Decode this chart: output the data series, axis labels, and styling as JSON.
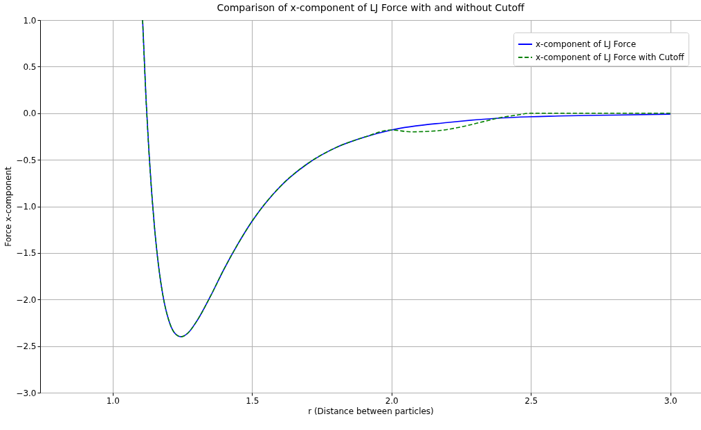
{
  "chart_data": {
    "type": "line",
    "title": "Comparison of x-component of LJ Force with and without Cutoff",
    "xlabel": "r (Distance between particles)",
    "ylabel": "Force x-component",
    "xlim": [
      0.74,
      3.11
    ],
    "ylim": [
      -3,
      1
    ],
    "xticks": [
      {
        "value": 1,
        "label": "1.0"
      },
      1.5,
      {
        "value": 2,
        "label": "2.0"
      },
      2.5,
      {
        "value": 3,
        "label": "3.0"
      }
    ],
    "yticks": [
      {
        "value": -3,
        "label": "−3.0"
      },
      {
        "value": -2.5,
        "label": "−2.5"
      },
      {
        "value": -2,
        "label": "−2.0"
      },
      {
        "value": -1.5,
        "label": "−1.5"
      },
      {
        "value": -1,
        "label": "−1.0"
      },
      {
        "value": -0.5,
        "label": "−0.5"
      },
      {
        "value": 0,
        "label": "0.0"
      },
      0.5,
      {
        "value": 1,
        "label": "1.0"
      }
    ],
    "grid": true,
    "legend": "top right",
    "line_style": "solid",
    "series": [
      {
        "name": "x-component of LJ Force",
        "color": "#0000ff",
        "x": [
          1.1075,
          1.12,
          1.13,
          1.14,
          1.15,
          1.16,
          1.18,
          1.2,
          1.22,
          1.245,
          1.27,
          1.3,
          1.35,
          1.4,
          1.45,
          1.5,
          1.6,
          1.7,
          1.8,
          1.9,
          2.0,
          2.2,
          2.4,
          2.6,
          2.8,
          3.0
        ],
        "values": [
          1.0,
          0.14,
          -0.4,
          -0.85,
          -1.22,
          -1.52,
          -1.95,
          -2.21,
          -2.35,
          -2.4,
          -2.36,
          -2.24,
          -1.97,
          -1.67,
          -1.4,
          -1.16,
          -0.79,
          -0.54,
          -0.37,
          -0.26,
          -0.18,
          -0.1,
          -0.05,
          -0.03,
          -0.02,
          -0.01
        ]
      },
      {
        "name": "x-component of LJ Force with Cutoff",
        "color": "#008000",
        "line_style": "dashed",
        "x": [
          1.1075,
          1.12,
          1.13,
          1.14,
          1.15,
          1.16,
          1.18,
          1.2,
          1.22,
          1.245,
          1.27,
          1.3,
          1.35,
          1.4,
          1.45,
          1.5,
          1.6,
          1.7,
          1.8,
          1.9,
          2.0,
          2.07,
          2.16,
          2.245,
          2.33,
          2.385,
          2.45,
          2.5,
          2.75,
          3.0
        ],
        "values": [
          1.0,
          0.14,
          -0.4,
          -0.85,
          -1.22,
          -1.52,
          -1.95,
          -2.21,
          -2.35,
          -2.4,
          -2.36,
          -2.24,
          -1.97,
          -1.67,
          -1.4,
          -1.16,
          -0.79,
          -0.54,
          -0.37,
          -0.26,
          -0.18,
          -0.2,
          -0.19,
          -0.15,
          -0.09,
          -0.05,
          -0.02,
          0,
          0,
          0
        ]
      }
    ]
  }
}
